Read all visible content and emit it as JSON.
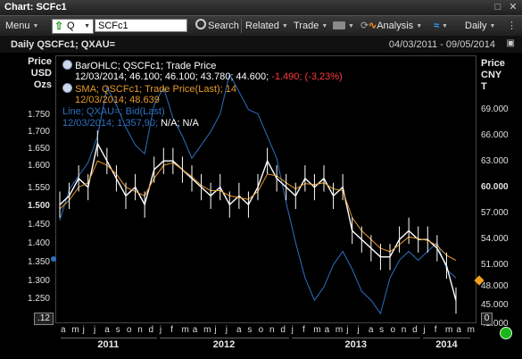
{
  "window": {
    "title": "Chart: SCFc1"
  },
  "toolbar": {
    "menu": "Menu",
    "quote_type": "Q",
    "ric": "SCFc1",
    "search": "Search",
    "related": "Related",
    "trade": "Trade",
    "analysis": "Analysis",
    "daily": "Daily"
  },
  "chart_header": {
    "title": "Daily QSCFc1; QXAU=",
    "date_range": "04/03/2011 - 09/05/2014"
  },
  "axes": {
    "left_unit": [
      "Price",
      "USD",
      "Ozs"
    ],
    "right_unit": [
      "Price",
      "CNY",
      "T"
    ],
    "left_ticks": [
      "1.750",
      "1.700",
      "1.650",
      "1.600",
      "1.550",
      "1.500",
      "1.450",
      "1.400",
      "1.350",
      "1.300",
      "1.250"
    ],
    "right_ticks": [
      "69.000",
      "66.000",
      "63.000",
      "60.000",
      "57.000",
      "54.000",
      "51.000",
      "48.000",
      "45.000",
      "42.000"
    ],
    "left_box": ".12",
    "right_box": "0"
  },
  "legend": {
    "bar_title": "BarOHLC; QSCFc1; Trade Price",
    "bar_values": "12/03/2014; 46.100; 46.100; 43.780; 44.600;",
    "bar_change": "-1.490; (-3,23%)",
    "sma_title": "SMA; QSCFc1; Trade Price(Last); 14",
    "sma_values": "12/03/2014; 48.639",
    "line_title": "Line; QXAU=; Bid(Last)",
    "line_values": "12/03/2014; 1.357,90;",
    "line_na": "N/A; N/A"
  },
  "x_axis": {
    "months": [
      "a",
      "m",
      "j",
      "j",
      "a",
      "s",
      "o",
      "n",
      "d",
      "j",
      "f",
      "m",
      "a",
      "m",
      "j",
      "j",
      "a",
      "s",
      "o",
      "n",
      "d",
      "j",
      "f",
      "m",
      "a",
      "m",
      "j",
      "j",
      "a",
      "s",
      "o",
      "n",
      "d",
      "j",
      "f",
      "m",
      "a",
      "m"
    ],
    "years": [
      "2011",
      "2012",
      "2013",
      "2014"
    ]
  },
  "colors": {
    "ohlc": "#ffffff",
    "sma": "#e89a2a",
    "gold": "#2f6fbf",
    "change_neg": "#ff3b3b"
  },
  "chart_data": {
    "type": "line",
    "series": [
      {
        "name": "QSCFc1 Trade Price",
        "values": [
          55,
          56,
          58,
          57,
          62,
          60,
          58,
          56,
          57,
          55,
          59,
          60,
          60,
          59,
          58,
          57,
          56,
          57,
          55,
          56,
          55,
          57,
          60,
          58,
          57,
          56,
          58,
          57,
          58,
          56,
          57,
          52,
          51,
          50,
          49,
          49,
          51,
          52,
          51,
          51,
          50,
          48,
          44
        ]
      },
      {
        "name": "SMA 14",
        "values": [
          54.5,
          55.5,
          57,
          57.5,
          60,
          59.5,
          58.5,
          57,
          56.5,
          56,
          58,
          59.5,
          59.8,
          59,
          58.2,
          57.2,
          56.6,
          56.6,
          56,
          55.8,
          55.6,
          56.5,
          58.5,
          58.3,
          57.5,
          56.8,
          57.4,
          57.3,
          57.5,
          56.8,
          56.6,
          53.5,
          52,
          51,
          50,
          49.6,
          50.4,
          51.3,
          51.1,
          50.9,
          50.3,
          49.2,
          48.6
        ]
      },
      {
        "name": "QXAU=",
        "values": [
          1430,
          1500,
          1530,
          1560,
          1620,
          1730,
          1690,
          1640,
          1600,
          1580,
          1690,
          1730,
          1660,
          1620,
          1570,
          1600,
          1630,
          1670,
          1760,
          1720,
          1680,
          1670,
          1620,
          1570,
          1470,
          1380,
          1300,
          1250,
          1280,
          1330,
          1360,
          1320,
          1270,
          1250,
          1220,
          1300,
          1340,
          1360,
          1340,
          1360,
          1380,
          1320,
          1300
        ]
      }
    ],
    "ylim_left": [
      1.2,
      1.8
    ],
    "ylim_right": [
      41.5,
      72
    ],
    "grid": false
  }
}
